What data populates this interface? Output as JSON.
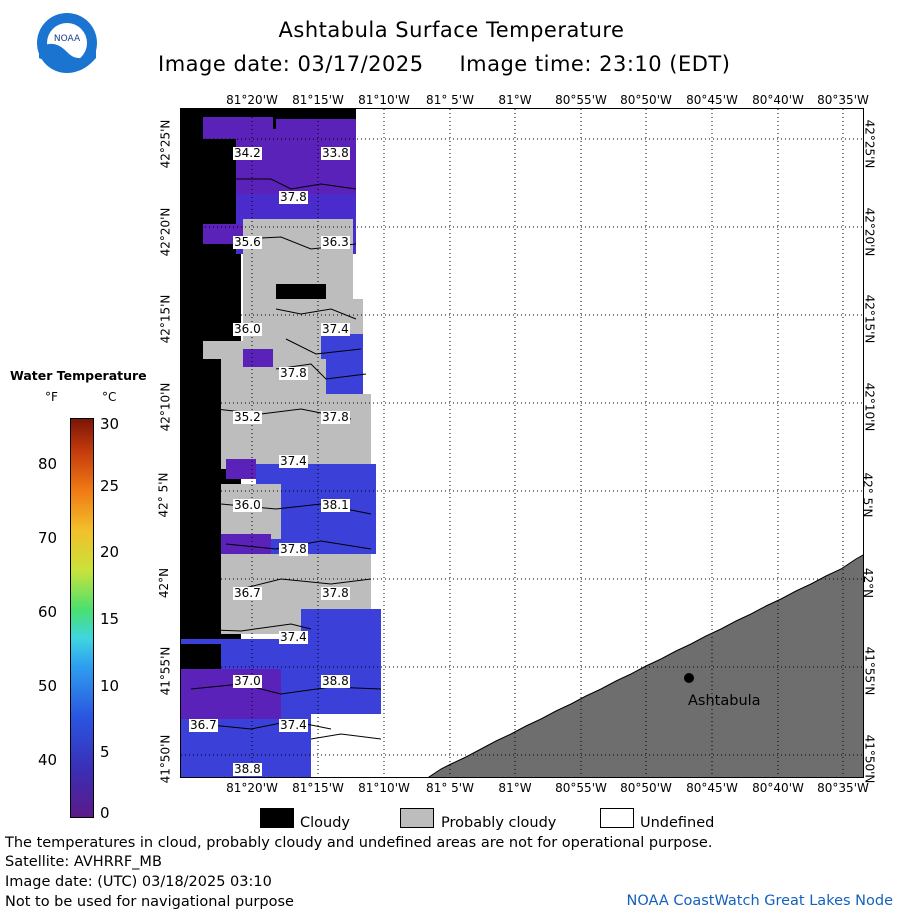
{
  "header": {
    "title": "Ashtabula Surface Temperature",
    "subtitle": "Image date: 03/17/2025     Image time: 23:10 (EDT)",
    "logo_text": "NOAA"
  },
  "map": {
    "lon_labels": [
      "81°20'W",
      "81°15'W",
      "81°10'W",
      "81° 5'W",
      "81°W",
      "80°55'W",
      "80°50'W",
      "80°45'W",
      "80°40'W",
      "80°35'W"
    ],
    "lat_labels": [
      "42°25'N",
      "42°20'N",
      "42°15'N",
      "42°10'N",
      "42° 5'N",
      "42°N",
      "41°55'N",
      "41°50'N"
    ],
    "city_label": "Ashtabula",
    "temp_labels": [
      "34.2",
      "33.8",
      "37.8",
      "35.6",
      "36.3",
      "36.0",
      "37.4",
      "37.8",
      "35.2",
      "37.8",
      "37.4",
      "36.0",
      "38.1",
      "37.8",
      "36.7",
      "37.8",
      "37.4",
      "37.0",
      "38.8",
      "36.7",
      "37.4",
      "38.8"
    ]
  },
  "legend": {
    "title": "Water Temperature",
    "unit_f": "°F",
    "unit_c": "°C",
    "f_ticks": [
      "80",
      "70",
      "60",
      "50",
      "40"
    ],
    "c_ticks": [
      "30",
      "25",
      "20",
      "15",
      "10",
      "5",
      "0"
    ],
    "keys": [
      "Cloudy",
      "Probably cloudy",
      "Undefined"
    ]
  },
  "footer": {
    "line1": "The temperatures in cloud, probably cloudy and undefined areas are not for operational purpose.",
    "line2": "Satellite: AVHRRF_MB",
    "line3": "Image date: (UTC) 03/18/2025  03:10",
    "line4": "Not to be used for navigational purpose",
    "credit": "NOAA CoastWatch Great Lakes Node"
  },
  "colors": {
    "cloudy": "#000000",
    "probably_cloudy": "#bdbdbd",
    "undefined": "#ffffff",
    "land": "#6e6e6e",
    "water_purple": "#5a22b8",
    "water_blue": "#3a40d8",
    "credit_blue": "#1560bd"
  }
}
